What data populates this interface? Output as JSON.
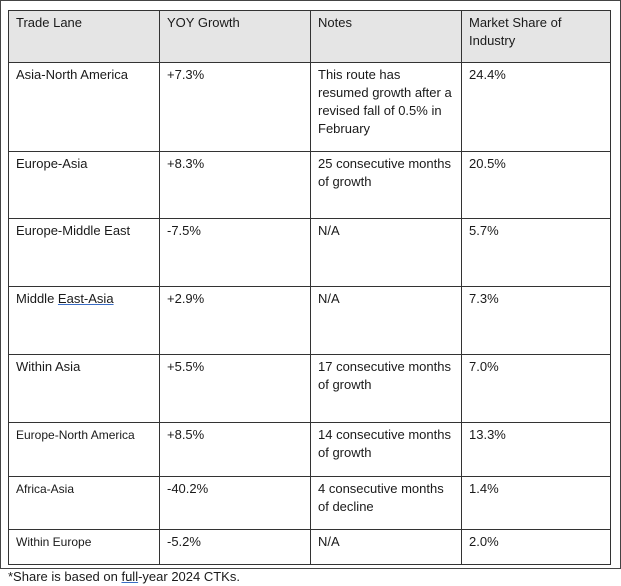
{
  "table": {
    "headers": [
      "Trade Lane",
      "YOY Growth",
      "Notes",
      "Market Share of Industry"
    ],
    "rows": [
      {
        "lane": "Asia-North America",
        "growth": "+7.3%",
        "notes": "This route has resumed growth after a revised fall of 0.5% in February",
        "share": "24.4%"
      },
      {
        "lane": "Europe-Asia",
        "growth": "+8.3%",
        "notes": "25 consecutive months of growth",
        "share": "20.5%"
      },
      {
        "lane": "Europe-Middle East",
        "growth": "-7.5%",
        "notes": "N/A",
        "share": "5.7%"
      },
      {
        "lane_prefix": "Middle ",
        "lane_linked": "East-Asia",
        "growth": "+2.9%",
        "notes": "N/A",
        "share": "7.3%"
      },
      {
        "lane": "Within Asia",
        "growth": "+5.5%",
        "notes": "17 consecutive months of growth",
        "share": "7.0%"
      },
      {
        "lane": "Europe-North America",
        "growth": "+8.5%",
        "notes": "14 consecutive months of growth",
        "share": "13.3%"
      },
      {
        "lane": "Africa-Asia",
        "growth": "-40.2%",
        "notes": "4 consecutive months of decline",
        "share": "1.4%"
      },
      {
        "lane": "Within Europe",
        "growth": "-5.2%",
        "notes": "N/A",
        "share": "2.0%"
      }
    ]
  },
  "footnote": {
    "prefix": "*Share is based on ",
    "linked": "full",
    "suffix": "-year 2024 CTKs."
  }
}
